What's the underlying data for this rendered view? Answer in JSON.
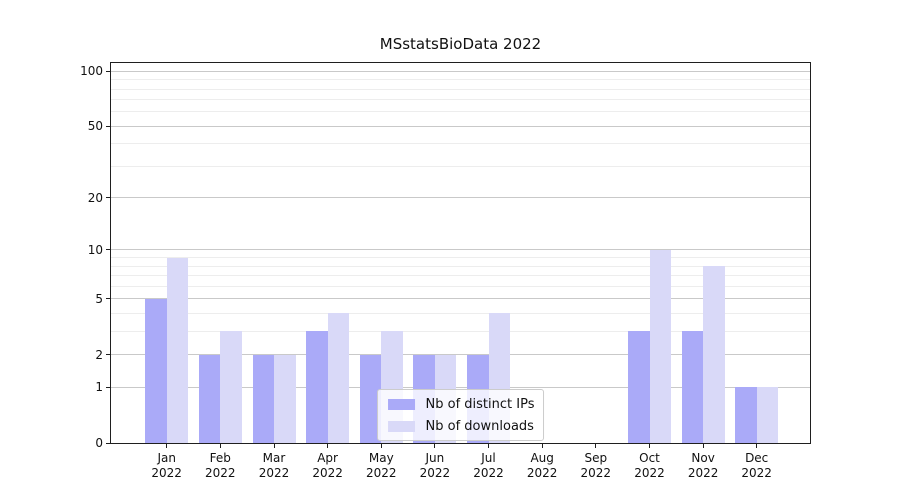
{
  "chart_data": {
    "type": "bar",
    "title": "MSstatsBioData 2022",
    "categories": [
      "Jan 2022",
      "Feb 2022",
      "Mar 2022",
      "Apr 2022",
      "May 2022",
      "Jun 2022",
      "Jul 2022",
      "Aug 2022",
      "Sep 2022",
      "Oct 2022",
      "Nov 2022",
      "Dec 2022"
    ],
    "series": [
      {
        "name": "Nb of distinct IPs",
        "color": "#aaaaf8",
        "values": [
          5,
          2,
          2,
          3,
          2,
          2,
          2,
          0,
          0,
          3,
          3,
          1
        ]
      },
      {
        "name": "Nb of downloads",
        "color": "#d9d9f8",
        "values": [
          9,
          3,
          2,
          4,
          3,
          2,
          4,
          0,
          0,
          10,
          8,
          1
        ]
      }
    ],
    "yscale": "log1p",
    "ylim": [
      0,
      111
    ],
    "yticks": [
      0,
      1,
      2,
      5,
      10,
      20,
      50,
      100
    ],
    "minor_gridlines": [
      3,
      4,
      6,
      7,
      8,
      9,
      30,
      40,
      60,
      70,
      80,
      90
    ],
    "grid": true,
    "legend_position": "lower center"
  }
}
